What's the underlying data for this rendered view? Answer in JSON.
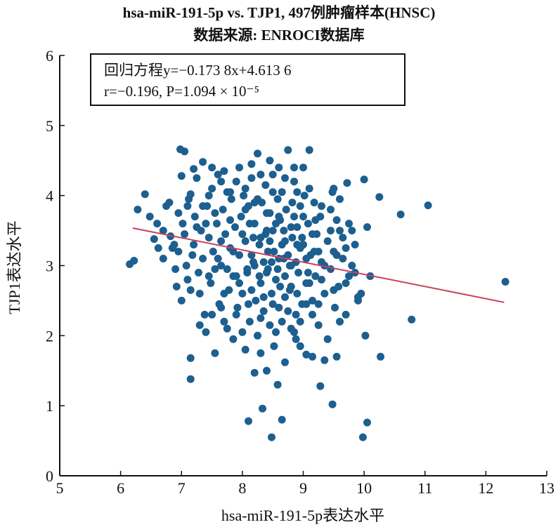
{
  "chart_data": {
    "type": "scatter",
    "title": "hsa-miR-191-5p vs. TJP1, 497例肿瘤样本(HNSC)",
    "subtitle": "数据来源: ENROCI数据库",
    "xlabel": "hsa-miR-191-5p表达水平",
    "ylabel": "TJP1表达水平",
    "xlim": [
      5,
      13
    ],
    "ylim": [
      0,
      6
    ],
    "xticks": [
      "5",
      "6",
      "7",
      "8",
      "9",
      "10",
      "11",
      "12",
      "13"
    ],
    "yticks": [
      "0",
      "1",
      "2",
      "3",
      "4",
      "5",
      "6"
    ],
    "annotation": {
      "line1": "回归方程y=−0.173 8x+4.613 6",
      "line2": "r=−0.196, P=1.094 × 10⁻⁵"
    },
    "regression": {
      "slope": -0.1738,
      "intercept": 4.6136,
      "x_range": [
        6.2,
        12.3
      ]
    },
    "point_color": "#1d5f8f",
    "line_color": "#c8415a",
    "grid": false,
    "points": [
      [
        6.15,
        3.02
      ],
      [
        6.22,
        3.07
      ],
      [
        6.28,
        3.8
      ],
      [
        6.4,
        4.02
      ],
      [
        6.48,
        3.7
      ],
      [
        6.55,
        3.38
      ],
      [
        6.62,
        3.25
      ],
      [
        6.7,
        3.5
      ],
      [
        6.75,
        3.85
      ],
      [
        6.82,
        3.42
      ],
      [
        6.88,
        3.3
      ],
      [
        6.9,
        2.95
      ],
      [
        6.92,
        2.7
      ],
      [
        6.98,
        4.66
      ],
      [
        7.05,
        4.63
      ],
      [
        7.0,
        2.5
      ],
      [
        7.02,
        3.6
      ],
      [
        7.08,
        3.0
      ],
      [
        7.1,
        2.8
      ],
      [
        7.12,
        3.95
      ],
      [
        7.15,
        4.02
      ],
      [
        7.18,
        3.15
      ],
      [
        7.2,
        3.3
      ],
      [
        7.15,
        1.68
      ],
      [
        7.15,
        1.38
      ],
      [
        7.22,
        3.7
      ],
      [
        7.25,
        4.25
      ],
      [
        7.28,
        2.9
      ],
      [
        7.3,
        2.6
      ],
      [
        7.32,
        3.5
      ],
      [
        7.35,
        3.1
      ],
      [
        7.38,
        2.3
      ],
      [
        7.4,
        2.05
      ],
      [
        7.42,
        3.85
      ],
      [
        7.45,
        3.4
      ],
      [
        7.48,
        2.75
      ],
      [
        7.5,
        4.1
      ],
      [
        7.52,
        3.2
      ],
      [
        7.55,
        2.95
      ],
      [
        7.58,
        3.6
      ],
      [
        7.6,
        4.3
      ],
      [
        7.62,
        2.45
      ],
      [
        7.65,
        3.0
      ],
      [
        7.68,
        3.8
      ],
      [
        7.7,
        2.2
      ],
      [
        7.72,
        3.45
      ],
      [
        7.75,
        4.05
      ],
      [
        7.78,
        2.65
      ],
      [
        7.8,
        3.25
      ],
      [
        7.82,
        3.95
      ],
      [
        7.85,
        2.85
      ],
      [
        7.88,
        3.55
      ],
      [
        7.9,
        4.2
      ],
      [
        7.92,
        2.4
      ],
      [
        7.95,
        3.15
      ],
      [
        7.98,
        3.7
      ],
      [
        8.0,
        2.6
      ],
      [
        8.02,
        4.0
      ],
      [
        8.05,
        3.35
      ],
      [
        8.08,
        2.9
      ],
      [
        8.1,
        3.85
      ],
      [
        8.12,
        2.2
      ],
      [
        8.15,
        4.45
      ],
      [
        8.18,
        3.05
      ],
      [
        8.2,
        3.6
      ],
      [
        8.22,
        2.5
      ],
      [
        8.25,
        4.6
      ],
      [
        8.28,
        3.3
      ],
      [
        8.3,
        2.75
      ],
      [
        8.32,
        3.9
      ],
      [
        8.35,
        2.35
      ],
      [
        8.38,
        4.15
      ],
      [
        8.4,
        3.5
      ],
      [
        8.42,
        2.95
      ],
      [
        8.45,
        3.75
      ],
      [
        8.48,
        2.6
      ],
      [
        8.5,
        4.3
      ],
      [
        8.52,
        3.2
      ],
      [
        8.55,
        2.8
      ],
      [
        8.58,
        3.95
      ],
      [
        8.6,
        2.4
      ],
      [
        8.62,
        3.65
      ],
      [
        8.65,
        4.05
      ],
      [
        8.68,
        3.1
      ],
      [
        8.7,
        2.55
      ],
      [
        8.72,
        3.8
      ],
      [
        8.75,
        4.65
      ],
      [
        8.78,
        3.0
      ],
      [
        8.8,
        2.7
      ],
      [
        8.82,
        3.4
      ],
      [
        8.85,
        4.2
      ],
      [
        8.88,
        2.3
      ],
      [
        8.9,
        3.55
      ],
      [
        8.92,
        2.9
      ],
      [
        8.95,
        3.85
      ],
      [
        8.98,
        2.45
      ],
      [
        9.0,
        3.3
      ],
      [
        9.02,
        4.0
      ],
      [
        9.05,
        2.75
      ],
      [
        9.08,
        3.6
      ],
      [
        9.1,
        4.65
      ],
      [
        9.12,
        3.15
      ],
      [
        9.15,
        2.5
      ],
      [
        9.18,
        3.9
      ],
      [
        9.2,
        2.85
      ],
      [
        9.22,
        3.45
      ],
      [
        9.25,
        2.15
      ],
      [
        9.28,
        3.7
      ],
      [
        9.3,
        3.05
      ],
      [
        9.35,
        2.6
      ],
      [
        9.4,
        3.35
      ],
      [
        9.45,
        2.95
      ],
      [
        9.48,
        4.05
      ],
      [
        9.5,
        3.2
      ],
      [
        9.52,
        2.4
      ],
      [
        9.55,
        3.65
      ],
      [
        9.58,
        2.7
      ],
      [
        9.6,
        3.95
      ],
      [
        9.65,
        3.1
      ],
      [
        9.7,
        2.3
      ],
      [
        9.72,
        4.18
      ],
      [
        9.75,
        3.6
      ],
      [
        9.8,
        3.0
      ],
      [
        9.85,
        3.3
      ],
      [
        9.9,
        2.5
      ],
      [
        9.95,
        2.6
      ],
      [
        10.0,
        4.23
      ],
      [
        10.02,
        2.0
      ],
      [
        10.05,
        3.55
      ],
      [
        10.1,
        2.85
      ],
      [
        10.25,
        3.98
      ],
      [
        10.27,
        1.7
      ],
      [
        10.6,
        3.73
      ],
      [
        10.78,
        2.23
      ],
      [
        11.05,
        3.86
      ],
      [
        12.32,
        2.77
      ],
      [
        7.55,
        1.75
      ],
      [
        7.9,
        2.3
      ],
      [
        8.05,
        1.8
      ],
      [
        8.1,
        0.78
      ],
      [
        8.2,
        1.47
      ],
      [
        8.3,
        1.75
      ],
      [
        8.33,
        0.96
      ],
      [
        8.4,
        1.5
      ],
      [
        8.48,
        0.55
      ],
      [
        8.52,
        1.85
      ],
      [
        8.58,
        1.3
      ],
      [
        8.65,
        0.8
      ],
      [
        8.7,
        1.62
      ],
      [
        8.8,
        2.1
      ],
      [
        8.88,
        1.95
      ],
      [
        9.05,
        1.73
      ],
      [
        9.15,
        1.7
      ],
      [
        9.28,
        1.28
      ],
      [
        9.35,
        1.65
      ],
      [
        9.48,
        1.02
      ],
      [
        9.55,
        1.7
      ],
      [
        9.98,
        0.55
      ],
      [
        10.05,
        0.76
      ],
      [
        8.95,
        1.85
      ],
      [
        7.65,
        2.4
      ],
      [
        7.75,
        2.1
      ],
      [
        7.85,
        1.95
      ],
      [
        8.0,
        2.05
      ],
      [
        8.15,
        2.65
      ],
      [
        8.25,
        2.0
      ],
      [
        8.35,
        2.55
      ],
      [
        8.45,
        2.15
      ],
      [
        8.55,
        2.05
      ],
      [
        8.65,
        2.2
      ],
      [
        8.75,
        2.35
      ],
      [
        8.85,
        2.05
      ],
      [
        8.95,
        2.2
      ],
      [
        9.05,
        2.45
      ],
      [
        9.15,
        2.3
      ],
      [
        9.25,
        2.45
      ],
      [
        6.95,
        3.2
      ],
      [
        7.05,
        3.45
      ],
      [
        7.15,
        2.65
      ],
      [
        7.25,
        3.55
      ],
      [
        7.35,
        3.85
      ],
      [
        7.45,
        2.85
      ],
      [
        7.55,
        3.75
      ],
      [
        7.65,
        3.35
      ],
      [
        7.75,
        2.95
      ],
      [
        7.85,
        3.2
      ],
      [
        7.95,
        2.75
      ],
      [
        8.05,
        3.8
      ],
      [
        8.15,
        3.15
      ],
      [
        8.25,
        3.95
      ],
      [
        8.35,
        3.05
      ],
      [
        8.45,
        3.35
      ],
      [
        8.55,
        3.6
      ],
      [
        8.65,
        3.3
      ],
      [
        8.75,
        3.15
      ],
      [
        8.85,
        3.7
      ],
      [
        8.95,
        3.25
      ],
      [
        9.05,
        3.1
      ],
      [
        9.15,
        3.45
      ],
      [
        9.25,
        3.2
      ],
      [
        9.35,
        3.0
      ],
      [
        9.45,
        3.5
      ],
      [
        9.55,
        3.15
      ],
      [
        9.65,
        3.4
      ],
      [
        9.75,
        2.85
      ],
      [
        9.85,
        2.9
      ],
      [
        7.4,
        3.6
      ],
      [
        7.6,
        3.1
      ],
      [
        7.8,
        3.65
      ],
      [
        8.0,
        3.45
      ],
      [
        8.2,
        3.9
      ],
      [
        8.4,
        3.75
      ],
      [
        8.6,
        3.1
      ],
      [
        8.8,
        3.55
      ],
      [
        9.0,
        3.7
      ],
      [
        9.2,
        3.65
      ],
      [
        7.5,
        4.4
      ],
      [
        7.7,
        4.35
      ],
      [
        7.95,
        4.4
      ],
      [
        8.15,
        4.25
      ],
      [
        8.45,
        4.5
      ],
      [
        8.6,
        4.4
      ],
      [
        8.85,
        4.4
      ],
      [
        9.0,
        4.4
      ],
      [
        7.3,
        2.15
      ],
      [
        7.5,
        2.3
      ],
      [
        7.7,
        2.6
      ],
      [
        7.9,
        2.85
      ],
      [
        8.1,
        2.45
      ],
      [
        8.3,
        2.25
      ],
      [
        8.5,
        2.45
      ],
      [
        8.7,
        2.85
      ],
      [
        8.9,
        2.6
      ],
      [
        9.1,
        2.75
      ],
      [
        9.3,
        2.8
      ],
      [
        9.5,
        2.65
      ],
      [
        9.6,
        2.2
      ],
      [
        9.4,
        1.95
      ],
      [
        9.7,
        2.75
      ],
      [
        9.9,
        2.55
      ],
      [
        6.6,
        3.6
      ],
      [
        6.8,
        3.9
      ],
      [
        7.0,
        4.28
      ],
      [
        6.7,
        3.1
      ],
      [
        6.85,
        3.25
      ],
      [
        6.95,
        3.75
      ],
      [
        7.1,
        3.85
      ],
      [
        7.2,
        4.38
      ],
      [
        7.35,
        4.48
      ],
      [
        7.45,
        4.0
      ],
      [
        7.65,
        4.2
      ],
      [
        7.8,
        4.05
      ],
      [
        8.05,
        4.1
      ],
      [
        8.3,
        4.3
      ],
      [
        8.5,
        4.05
      ],
      [
        8.7,
        4.25
      ],
      [
        8.9,
        4.05
      ],
      [
        9.1,
        4.1
      ],
      [
        9.3,
        3.85
      ],
      [
        9.45,
        3.8
      ],
      [
        9.5,
        4.1
      ],
      [
        9.6,
        3.5
      ],
      [
        9.8,
        3.5
      ],
      [
        9.7,
        3.25
      ],
      [
        8.08,
        2.95
      ],
      [
        8.18,
        3.4
      ],
      [
        8.28,
        2.85
      ],
      [
        8.38,
        3.45
      ],
      [
        8.48,
        3.05
      ],
      [
        8.58,
        2.95
      ],
      [
        8.68,
        3.5
      ],
      [
        8.78,
        2.65
      ],
      [
        8.88,
        3.05
      ],
      [
        8.98,
        3.4
      ],
      [
        9.08,
        2.9
      ],
      [
        9.18,
        3.2
      ],
      [
        8.12,
        3.6
      ],
      [
        8.42,
        3.2
      ],
      [
        8.62,
        2.7
      ],
      [
        8.82,
        3.9
      ],
      [
        8.2,
        3.0
      ],
      [
        8.3,
        3.4
      ],
      [
        8.4,
        2.9
      ],
      [
        8.5,
        3.5
      ],
      [
        8.6,
        3.7
      ],
      [
        8.7,
        3.35
      ],
      [
        8.8,
        3.0
      ],
      [
        8.9,
        3.3
      ]
    ]
  }
}
